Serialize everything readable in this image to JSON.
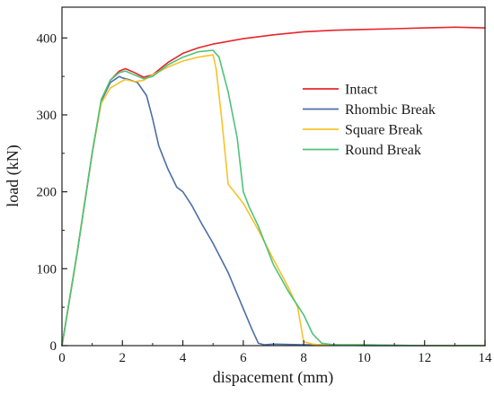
{
  "chart_data": {
    "type": "line",
    "title": "",
    "xlabel": "dispacement (mm)",
    "ylabel": "load  (kN)",
    "xlim": [
      0,
      14
    ],
    "ylim": [
      0,
      440
    ],
    "xticks": [
      0,
      2,
      4,
      6,
      8,
      10,
      12,
      14
    ],
    "yticks": [
      0,
      100,
      200,
      300,
      400
    ],
    "grid": false,
    "legend_position": "center-right",
    "series": [
      {
        "name": "Intact",
        "color": "#e8242b",
        "x": [
          0,
          0.5,
          1.0,
          1.3,
          1.6,
          1.9,
          2.1,
          2.4,
          2.7,
          3.0,
          3.5,
          4.0,
          4.5,
          5.0,
          6.0,
          7.0,
          8.0,
          9.0,
          10.0,
          11.0,
          12.0,
          13.0,
          14.0
        ],
        "y": [
          0,
          120,
          250,
          318,
          345,
          357,
          360,
          355,
          349,
          352,
          368,
          380,
          387,
          392,
          399,
          404,
          408,
          410,
          411,
          412,
          413,
          414,
          413
        ]
      },
      {
        "name": "Rhombic Break",
        "color": "#4c6fa6",
        "x": [
          0,
          0.5,
          1.0,
          1.3,
          1.6,
          1.9,
          2.0,
          2.2,
          2.5,
          2.8,
          3.0,
          3.2,
          3.5,
          3.8,
          4.0,
          4.3,
          4.6,
          5.0,
          5.5,
          6.0,
          6.3,
          6.5,
          6.7,
          7.0,
          8.0,
          9.0,
          10.0,
          12.0,
          14.0
        ],
        "y": [
          0,
          120,
          250,
          318,
          342,
          350,
          348,
          346,
          342,
          325,
          295,
          260,
          230,
          206,
          200,
          182,
          160,
          133,
          95,
          48,
          20,
          3,
          1,
          2,
          1,
          1,
          0,
          0,
          0
        ]
      },
      {
        "name": "Square Break",
        "color": "#f7c22b",
        "x": [
          0,
          0.5,
          1.0,
          1.3,
          1.6,
          1.9,
          2.1,
          2.4,
          2.7,
          3.0,
          3.5,
          4.0,
          4.5,
          5.0,
          5.1,
          5.3,
          5.5,
          5.8,
          6.0,
          6.5,
          7.0,
          7.5,
          7.8,
          8.0,
          8.3,
          8.5,
          9.0,
          10.0,
          12.0,
          14.0
        ],
        "y": [
          0,
          120,
          250,
          315,
          335,
          342,
          346,
          343,
          345,
          352,
          362,
          370,
          375,
          378,
          360,
          290,
          210,
          195,
          185,
          150,
          112,
          75,
          50,
          5,
          2,
          1,
          1,
          1,
          0,
          0
        ]
      },
      {
        "name": "Round Break",
        "color": "#4fc27a",
        "x": [
          0,
          0.5,
          1.0,
          1.3,
          1.6,
          1.9,
          2.1,
          2.4,
          2.7,
          3.0,
          3.5,
          4.0,
          4.5,
          5.0,
          5.2,
          5.5,
          5.8,
          6.0,
          6.2,
          6.5,
          7.0,
          7.5,
          8.0,
          8.3,
          8.6,
          9.0,
          10.0,
          12.0,
          14.0
        ],
        "y": [
          0,
          120,
          250,
          320,
          345,
          355,
          357,
          352,
          347,
          350,
          365,
          375,
          382,
          384,
          375,
          330,
          270,
          200,
          180,
          155,
          105,
          70,
          40,
          15,
          3,
          1,
          1,
          0,
          0
        ]
      }
    ]
  }
}
